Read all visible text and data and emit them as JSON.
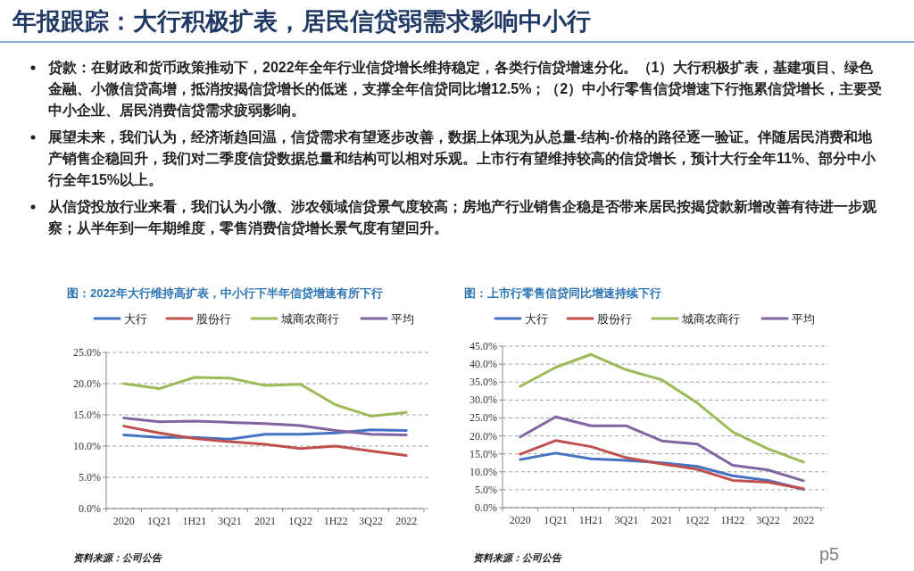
{
  "chart_data": [
    {
      "type": "other",
      "title": "年报跟踪：大行积极扩表，居民信贷弱需求影响中小行",
      "annotations": [
        "贷款：在财政和货币政策推动下，2022年全年行业信贷增长维持稳定，各类行信贷增速分化。（1）大行积极扩表，基建项目、绿色金融、小微信贷高增，抵消按揭信贷增长的低迷，支撑全年信贷同比增12.5%；（2）中小行零售信贷增速下行拖累信贷增长，主要受中小企业、居民消费信贷需求疲弱影响。",
        "展望未来，我们认为，经济渐趋回温，信贷需求有望逐步改善，数据上体现为从总量-结构-价格的路径逐一验证。伴随居民消费和地产销售企稳回升，我们对二季度信贷数据总量和结构可以相对乐观。上市行有望维持较高的信贷增长，预计大行全年11%、部分中小行全年15%以上。",
        "从信贷投放行业来看，我们认为小微、涉农领域信贷景气度较高；房地产行业销售企稳是否带来居民按揭贷款新增改善有待进一步观察；从半年到一年期维度，零售消费信贷增长景气度有望回升。",
        "p5"
      ]
    },
    {
      "type": "line",
      "title": "图：2022年大行维持高扩表，中小行下半年信贷增速有所下行",
      "categories": [
        "2020",
        "1Q21",
        "1H21",
        "3Q21",
        "2021",
        "1Q22",
        "1H22",
        "3Q22",
        "2022"
      ],
      "series": [
        {
          "name": "大行",
          "color": "#4472c4",
          "values": [
            11.8,
            11.4,
            11.4,
            11.1,
            11.9,
            11.9,
            12.1,
            12.6,
            12.5
          ]
        },
        {
          "name": "股份行",
          "color": "#c0504d",
          "values": [
            13.2,
            12.1,
            11.2,
            10.7,
            10.3,
            9.6,
            10.0,
            9.2,
            8.5
          ]
        },
        {
          "name": "城商农商行",
          "color": "#9bbb59",
          "values": [
            20.0,
            19.2,
            21.0,
            20.9,
            19.7,
            19.9,
            16.6,
            14.8,
            15.4
          ]
        },
        {
          "name": "平均",
          "color": "#8064a2",
          "values": [
            14.5,
            13.9,
            14.0,
            13.8,
            13.6,
            13.3,
            12.5,
            11.9,
            11.8
          ]
        }
      ],
      "ylim": [
        0,
        25
      ],
      "yticks": [
        {
          "value": 0,
          "label": "0.0%"
        },
        {
          "value": 5,
          "label": "5.0%"
        },
        {
          "value": 10,
          "label": "10.0%"
        },
        {
          "value": 15,
          "label": "15.0%"
        },
        {
          "value": 20,
          "label": "20.0%"
        },
        {
          "value": 25,
          "label": "25.0%"
        }
      ],
      "grid": "y",
      "legend": "top",
      "annotations": [
        "资料来源：公司公告"
      ]
    },
    {
      "type": "line",
      "title": "图：上市行零售信贷同比增速持续下行",
      "categories": [
        "2020",
        "1Q21",
        "1H21",
        "3Q21",
        "2021",
        "1Q22",
        "1H22",
        "3Q22",
        "2022"
      ],
      "series": [
        {
          "name": "大行",
          "color": "#4472c4",
          "values": [
            13.4,
            15.2,
            13.6,
            13.2,
            12.5,
            11.5,
            8.9,
            7.6,
            5.1
          ]
        },
        {
          "name": "股份行",
          "color": "#c0504d",
          "values": [
            14.9,
            18.7,
            17.0,
            13.9,
            12.2,
            10.7,
            7.6,
            7.1,
            5.3
          ]
        },
        {
          "name": "城商农商行",
          "color": "#9bbb59",
          "values": [
            33.8,
            39.1,
            42.7,
            38.4,
            35.6,
            29.2,
            21.1,
            16.4,
            12.7
          ]
        },
        {
          "name": "平均",
          "color": "#8064a2",
          "values": [
            19.7,
            25.3,
            22.8,
            22.8,
            18.6,
            17.7,
            11.8,
            10.5,
            7.5
          ]
        }
      ],
      "ylim": [
        0,
        45
      ],
      "yticks": [
        {
          "value": 0,
          "label": "0.0%"
        },
        {
          "value": 5,
          "label": "5.0%"
        },
        {
          "value": 10,
          "label": "10.0%"
        },
        {
          "value": 15,
          "label": "15.0%"
        },
        {
          "value": 20,
          "label": "20.0%"
        },
        {
          "value": 25,
          "label": "25.0%"
        },
        {
          "value": 30,
          "label": "30.0%"
        },
        {
          "value": 35,
          "label": "35.0%"
        },
        {
          "value": 40,
          "label": "40.0%"
        },
        {
          "value": 45,
          "label": "45.0%"
        }
      ],
      "grid": "y",
      "legend": "top",
      "annotations": [
        "资料来源：公司公告"
      ]
    }
  ]
}
